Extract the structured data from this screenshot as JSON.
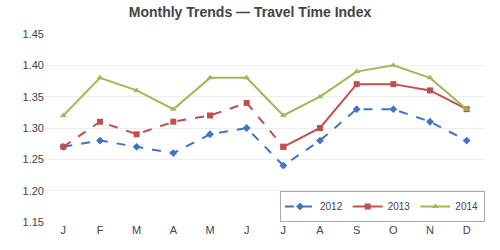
{
  "chart_data": {
    "type": "line",
    "title": "Monthly Trends — Travel Time Index",
    "categories": [
      "J",
      "F",
      "M",
      "A",
      "M",
      "J",
      "J",
      "A",
      "S",
      "O",
      "N",
      "D"
    ],
    "series": [
      {
        "name": "2012",
        "color": "#4472C4",
        "line_style": "dashed",
        "marker": "diamond",
        "values": [
          1.27,
          1.28,
          1.27,
          1.26,
          1.29,
          1.3,
          1.24,
          1.28,
          1.33,
          1.33,
          1.31,
          1.28
        ]
      },
      {
        "name": "2013",
        "color": "#C0504D",
        "line_style": "dashed",
        "marker": "square",
        "values": [
          1.27,
          1.31,
          1.29,
          1.31,
          1.32,
          1.34,
          1.27,
          null,
          null,
          null,
          null,
          null
        ]
      },
      {
        "name": "2013",
        "color": "#C0504D",
        "line_style": "solid",
        "marker": "square",
        "values": [
          null,
          null,
          null,
          null,
          null,
          null,
          1.27,
          1.3,
          1.37,
          1.37,
          1.36,
          1.33
        ]
      },
      {
        "name": "2014",
        "color": "#9BBB59",
        "line_style": "solid",
        "marker": "triangle",
        "values": [
          1.32,
          1.38,
          1.36,
          1.33,
          1.38,
          1.38,
          1.32,
          1.35,
          1.39,
          1.4,
          1.38,
          1.33
        ]
      }
    ],
    "ylim": [
      1.15,
      1.45
    ],
    "yticks": [
      1.15,
      {
        "value": 1.2,
        "label": "1.20"
      },
      1.25,
      {
        "value": 1.3,
        "label": "1.30"
      },
      1.35,
      {
        "value": 1.4,
        "label": "1.40"
      },
      1.45
    ],
    "grid": true,
    "legend": "lower right"
  }
}
